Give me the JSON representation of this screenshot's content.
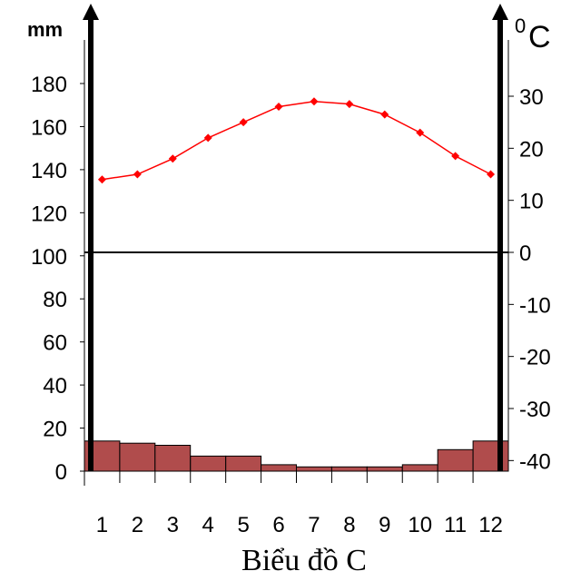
{
  "chart_data": {
    "type": "bar+line",
    "title": "Biểu đồ C",
    "categories": [
      "1",
      "2",
      "3",
      "4",
      "5",
      "6",
      "7",
      "8",
      "9",
      "10",
      "11",
      "12"
    ],
    "left_axis": {
      "unit": "mm",
      "range": [
        0,
        180
      ],
      "ticks": [
        0,
        20,
        40,
        60,
        80,
        100,
        120,
        140,
        160,
        180
      ]
    },
    "right_axis": {
      "unit_sup": "0",
      "unit": "C",
      "range": [
        -40,
        30
      ],
      "ticks": [
        -40,
        -30,
        -20,
        -10,
        0,
        10,
        20,
        30
      ]
    },
    "series": [
      {
        "kind": "bar",
        "axis": "left",
        "values": [
          14,
          13,
          12,
          7,
          7,
          3,
          2,
          2,
          2,
          3,
          10,
          14
        ]
      },
      {
        "kind": "line",
        "axis": "right",
        "values": [
          14,
          15,
          18,
          22,
          25,
          28,
          29,
          28.5,
          26.5,
          23,
          18.5,
          15
        ]
      }
    ],
    "colors": {
      "bar_fill": "#b04c4c",
      "bar_stroke": "#000000",
      "line": "#ff0000",
      "axis": "#000000"
    },
    "grid": false
  }
}
